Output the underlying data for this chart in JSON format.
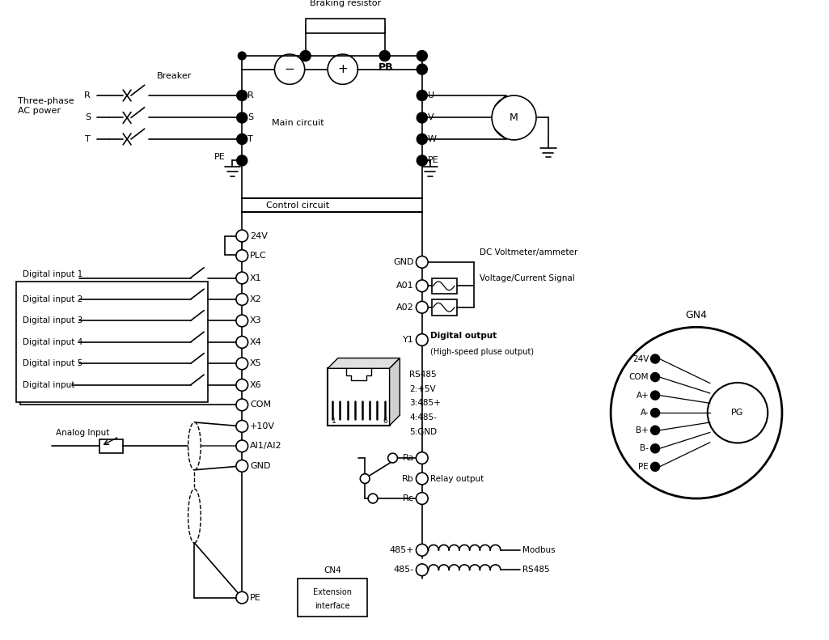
{
  "bg_color": "#ffffff",
  "labels": {
    "three_phase": "Three-phase\nAC power",
    "breaker": "Breaker",
    "braking_resistor": "Braking resistor",
    "main_circuit": "Main circuit",
    "control_circuit": "Control circuit",
    "PB": "PB",
    "digital_inputs": [
      "Digital input 1",
      "Digital input 2",
      "Digital input 3",
      "Digital input 4",
      "Digital input 5",
      "Digital input"
    ],
    "X_labels": [
      "X1",
      "X2",
      "X3",
      "X4",
      "X5",
      "X6"
    ],
    "gn4_labels": [
      "24V",
      "COM",
      "A+",
      "A-",
      "B+",
      "B-",
      "PE"
    ]
  }
}
